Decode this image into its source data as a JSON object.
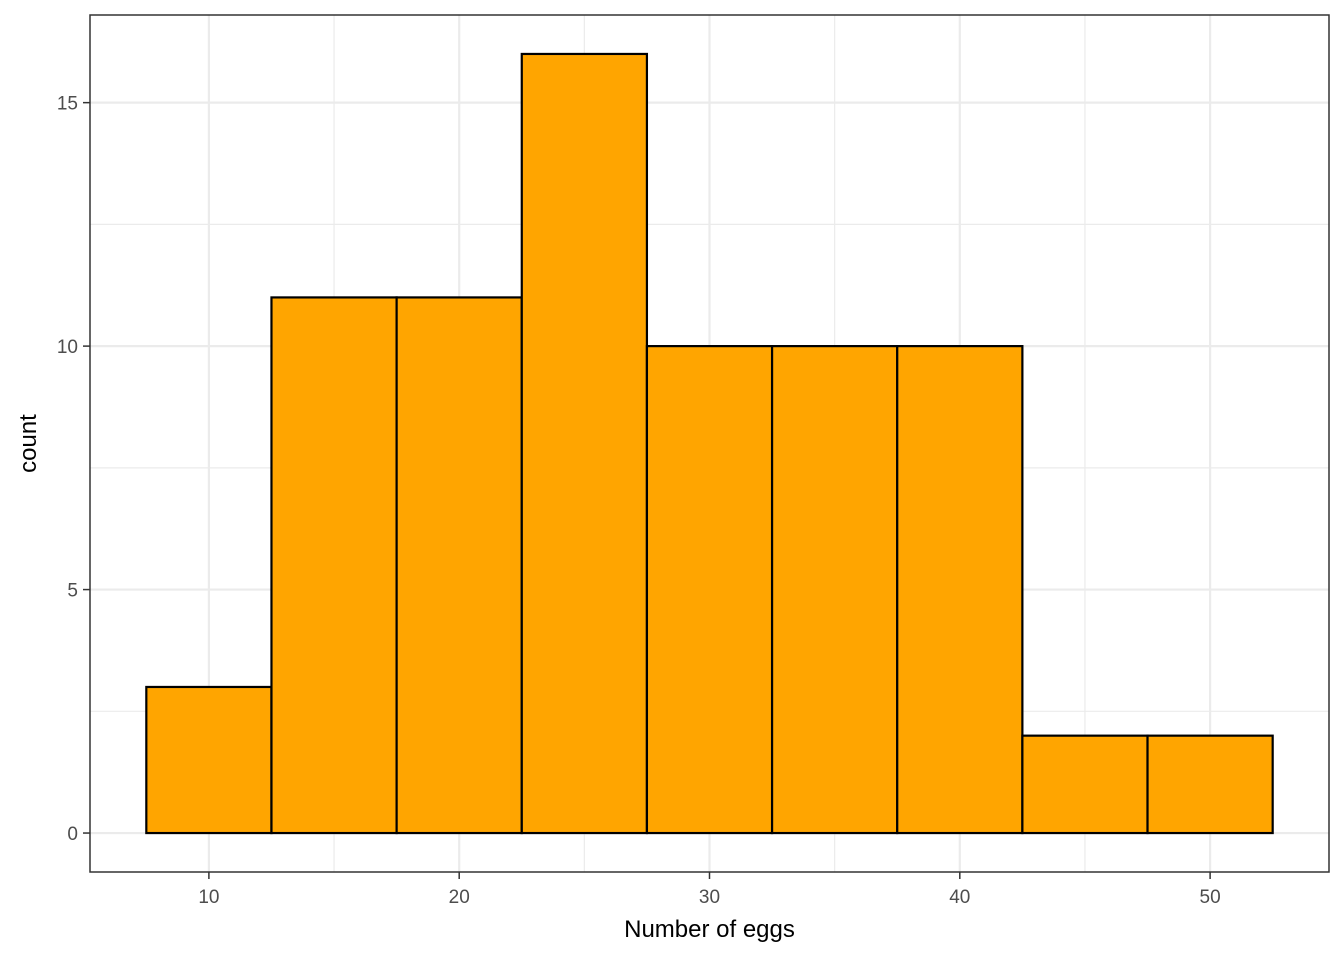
{
  "chart_data": {
    "type": "bar",
    "title": "",
    "xlabel": "Number of eggs",
    "ylabel": "count",
    "bin_width": 5,
    "bins": [
      {
        "start": 7.5,
        "end": 12.5,
        "count": 3
      },
      {
        "start": 12.5,
        "end": 17.5,
        "count": 11
      },
      {
        "start": 17.5,
        "end": 22.5,
        "count": 11
      },
      {
        "start": 22.5,
        "end": 27.5,
        "count": 16
      },
      {
        "start": 27.5,
        "end": 32.5,
        "count": 10
      },
      {
        "start": 32.5,
        "end": 37.5,
        "count": 10
      },
      {
        "start": 37.5,
        "end": 42.5,
        "count": 10
      },
      {
        "start": 42.5,
        "end": 47.5,
        "count": 2
      },
      {
        "start": 47.5,
        "end": 52.5,
        "count": 2
      }
    ],
    "xlim": [
      5.25,
      54.75
    ],
    "ylim": [
      -0.8,
      16.8
    ],
    "x_ticks": [
      10,
      20,
      30,
      40,
      50
    ],
    "y_ticks": [
      0,
      5,
      10,
      15
    ],
    "x_tick_labels": [
      "10",
      "20",
      "30",
      "40",
      "50"
    ],
    "y_tick_labels": [
      "0",
      "5",
      "10",
      "15"
    ],
    "x_minor_ticks": [
      15,
      25,
      35,
      45
    ],
    "y_minor_ticks": [
      2.5,
      7.5,
      12.5
    ],
    "grid": true,
    "legend": "none",
    "colors": {
      "bar_fill": "#FFA500",
      "bar_stroke": "#000000",
      "grid": "#EBEBEB",
      "panel_border": "#333333"
    }
  }
}
